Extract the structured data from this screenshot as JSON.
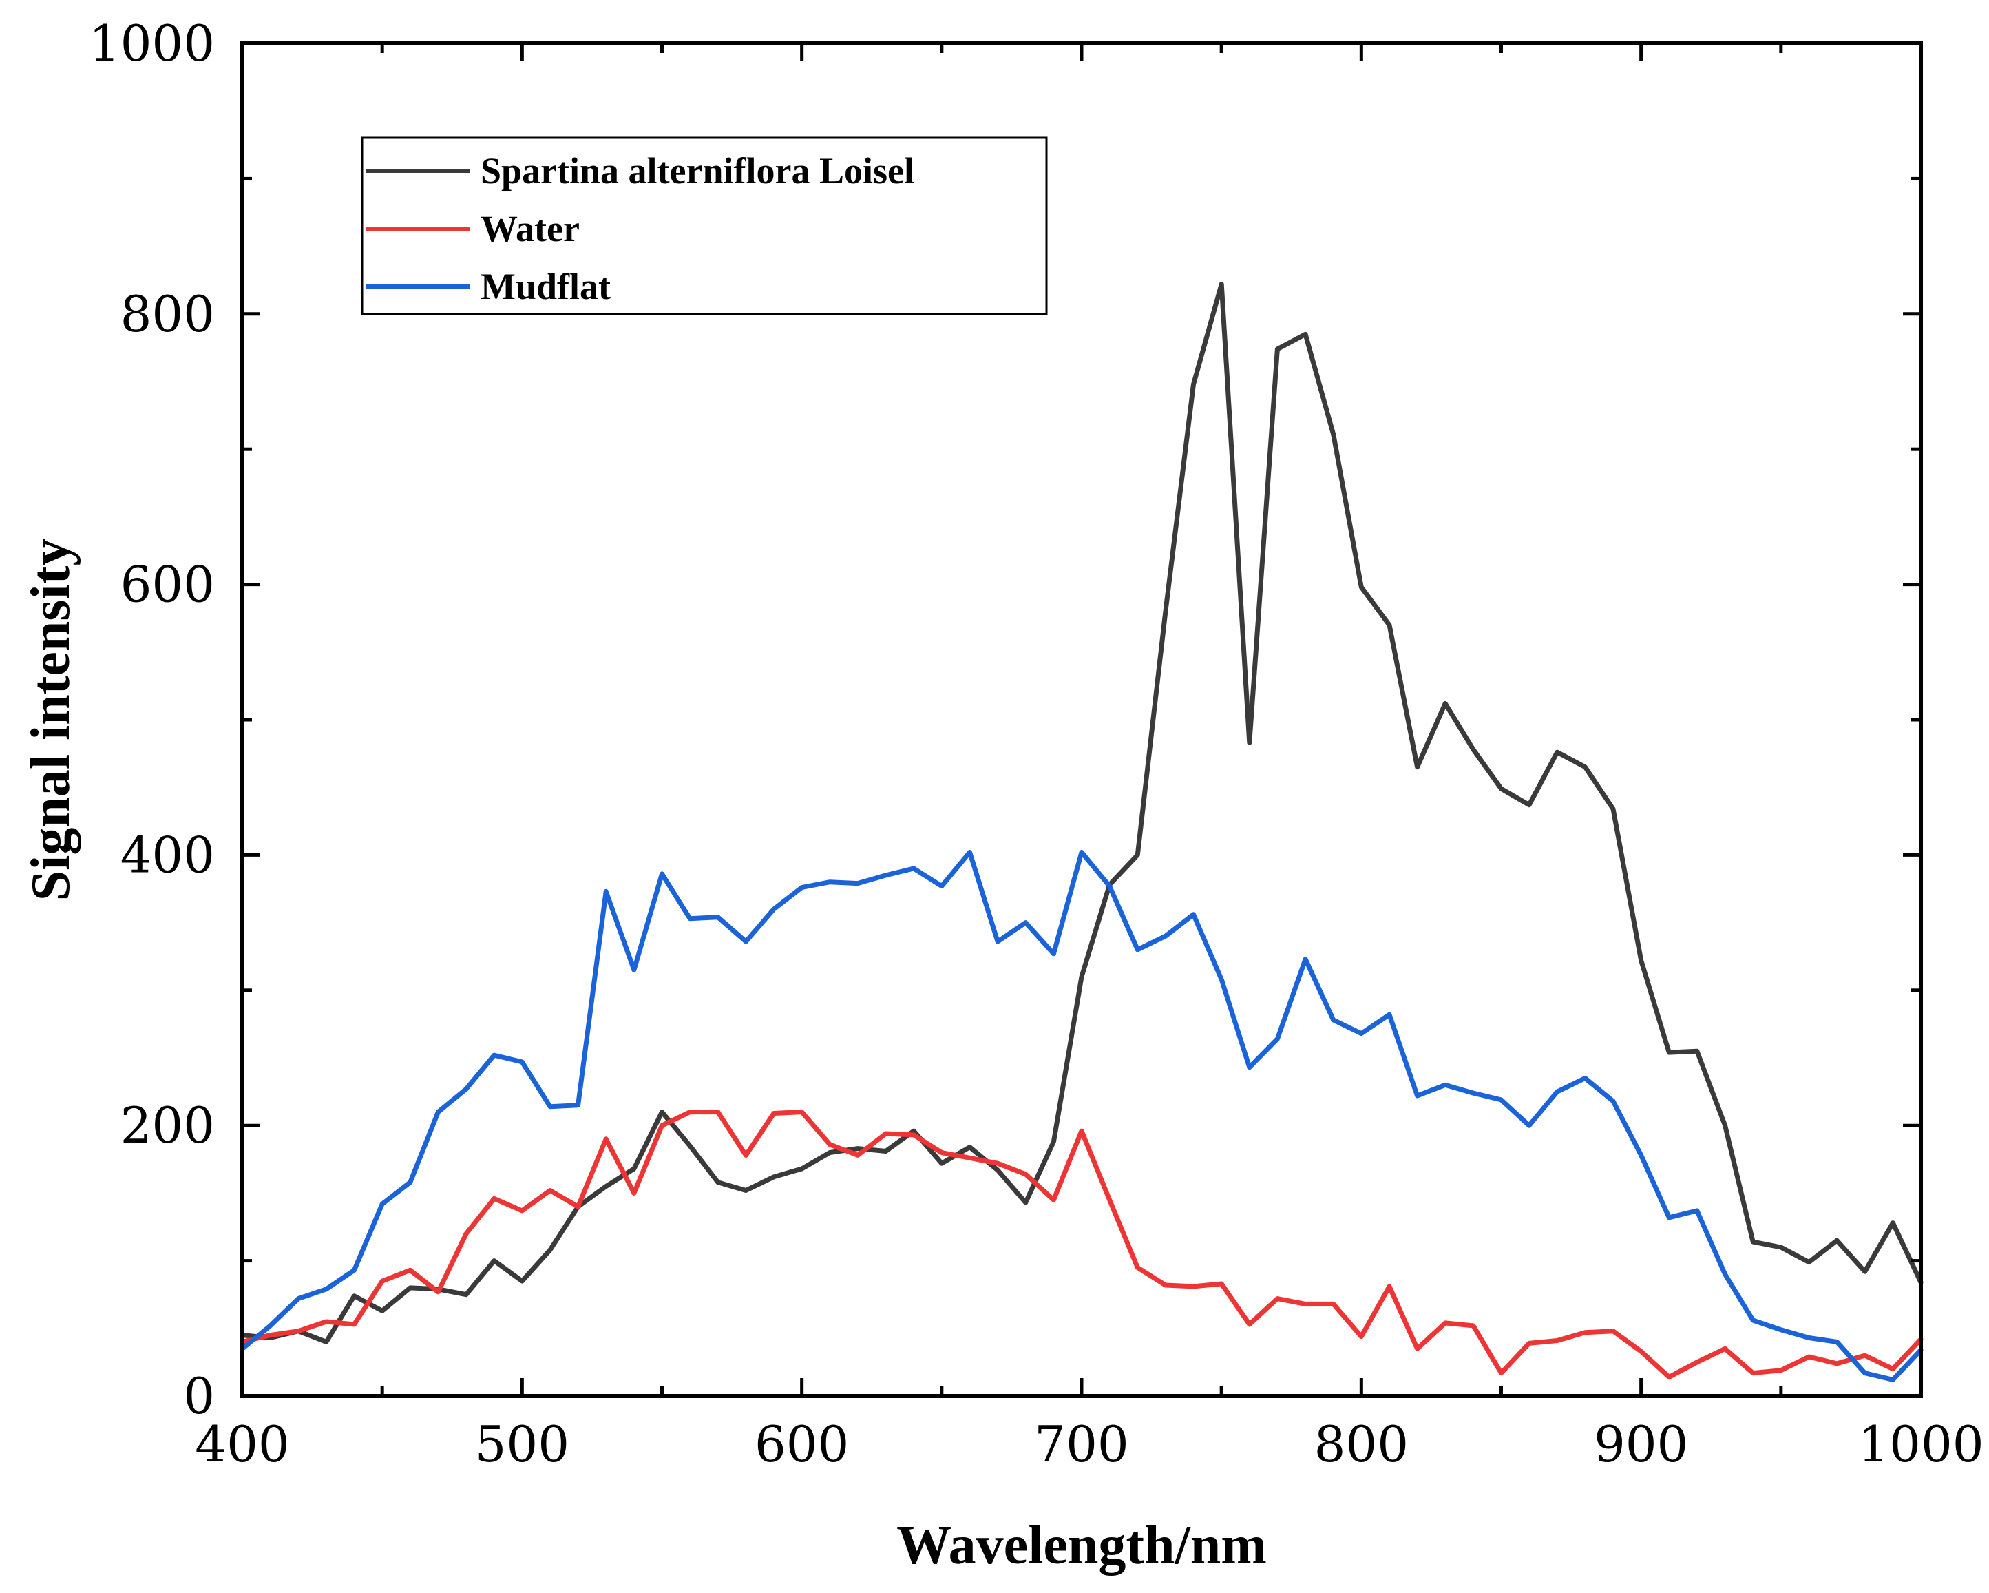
{
  "chart_data": {
    "type": "line",
    "title": "",
    "xlabel": "Wavelength/nm",
    "ylabel": "Signal intensity",
    "xlim": [
      400,
      1000
    ],
    "ylim": [
      0,
      1000
    ],
    "xticks": [
      400,
      500,
      600,
      700,
      800,
      900,
      1000
    ],
    "yticks": [
      0,
      200,
      400,
      600,
      800,
      1000
    ],
    "grid": false,
    "legend_position": "top-left",
    "x": [
      400,
      410,
      420,
      430,
      440,
      450,
      460,
      470,
      480,
      490,
      500,
      510,
      520,
      530,
      540,
      550,
      560,
      570,
      580,
      590,
      600,
      610,
      620,
      630,
      640,
      650,
      660,
      670,
      680,
      690,
      700,
      710,
      720,
      730,
      740,
      750,
      760,
      770,
      780,
      790,
      800,
      810,
      820,
      830,
      840,
      850,
      860,
      870,
      880,
      890,
      900,
      910,
      920,
      930,
      940,
      950,
      960,
      970,
      980,
      990,
      1000
    ],
    "series": [
      {
        "name": "Spartina alterniflora Loisel",
        "color": "#3a3a3a",
        "values": [
          45,
          43,
          48,
          40,
          74,
          63,
          80,
          79,
          75,
          100,
          85,
          108,
          140,
          155,
          168,
          210,
          185,
          158,
          152,
          162,
          168,
          180,
          183,
          181,
          196,
          172,
          184,
          167,
          143,
          188,
          310,
          378,
          400,
          580,
          748,
          822,
          483,
          774,
          785,
          711,
          598,
          570,
          465,
          512,
          478,
          449,
          437,
          476,
          465,
          434,
          322,
          254,
          255,
          200,
          114,
          110,
          99,
          115,
          92,
          128,
          84
        ]
      },
      {
        "name": "Water",
        "color": "#ee3535",
        "values": [
          40,
          45,
          48,
          55,
          53,
          85,
          93,
          77,
          120,
          146,
          137,
          152,
          140,
          190,
          150,
          200,
          210,
          210,
          178,
          209,
          210,
          186,
          178,
          194,
          193,
          180,
          176,
          172,
          164,
          145,
          196,
          145,
          95,
          82,
          81,
          83,
          53,
          72,
          68,
          68,
          44,
          81,
          35,
          54,
          52,
          17,
          39,
          41,
          47,
          48,
          33,
          14,
          25,
          35,
          17,
          19,
          29,
          24,
          30,
          20,
          42
        ]
      },
      {
        "name": "Mudflat",
        "color": "#1a63d8",
        "values": [
          35,
          52,
          72,
          79,
          93,
          142,
          158,
          210,
          227,
          252,
          247,
          214,
          215,
          373,
          315,
          386,
          353,
          354,
          336,
          360,
          376,
          380,
          379,
          385,
          390,
          377,
          402,
          336,
          350,
          327,
          402,
          377,
          330,
          340,
          356,
          308,
          243,
          264,
          323,
          278,
          268,
          282,
          222,
          230,
          224,
          219,
          200,
          225,
          235,
          218,
          178,
          132,
          137,
          90,
          56,
          49,
          43,
          40,
          17,
          12,
          34
        ]
      }
    ]
  }
}
